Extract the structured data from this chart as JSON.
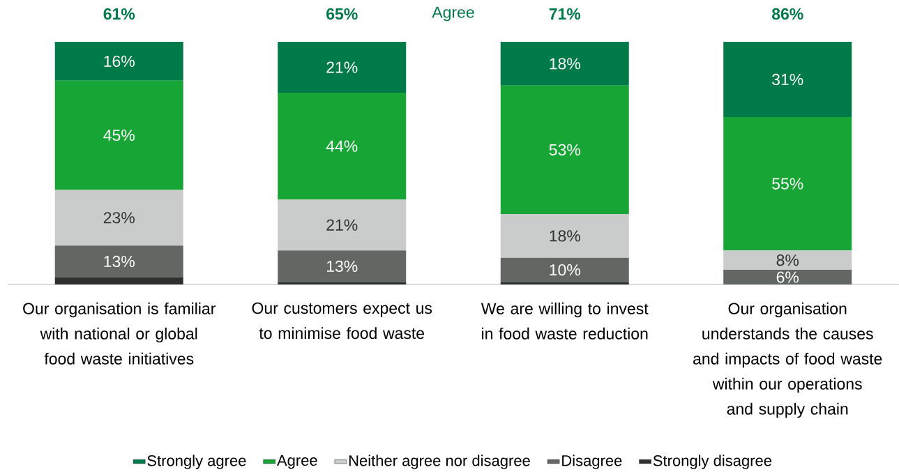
{
  "chart_data": {
    "type": "bar",
    "stacked": true,
    "legend": "bottom",
    "tick_labels": "x",
    "categories": [
      "Our organisation is familiar with national or global food waste initiatives",
      "Our customers expect us to minimise food waste",
      "We are willing to invest in food waste reduction",
      "Our organisation understands the causes and impacts of food waste within our operations and supply chain"
    ],
    "series": [
      {
        "name": "Strongly disagree",
        "color": "#2e302e",
        "values": [
          3,
          1,
          1,
          0
        ],
        "value_labels": [
          null,
          null,
          null,
          null
        ]
      },
      {
        "name": "Disagree",
        "color": "#626764",
        "values": [
          13,
          13,
          10,
          6
        ],
        "value_labels": [
          "13%",
          "13%",
          "10%",
          "6%"
        ]
      },
      {
        "name": "Neither agree nor disagree",
        "color": "#c9cccb",
        "values": [
          23,
          21,
          18,
          8
        ],
        "value_labels": [
          "23%",
          "21%",
          "18%",
          "8%"
        ]
      },
      {
        "name": "Agree",
        "color": "#17a535",
        "values": [
          45,
          44,
          53,
          55
        ],
        "value_labels": [
          "45%",
          "44%",
          "53%",
          "55%"
        ]
      },
      {
        "name": "Strongly agree",
        "color": "#007a48",
        "values": [
          16,
          21,
          18,
          31
        ],
        "value_labels": [
          "16%",
          "21%",
          "18%",
          "31%"
        ]
      }
    ],
    "annotations": [
      "Agree",
      "61%",
      "65%",
      "71%",
      "86%"
    ]
  }
}
